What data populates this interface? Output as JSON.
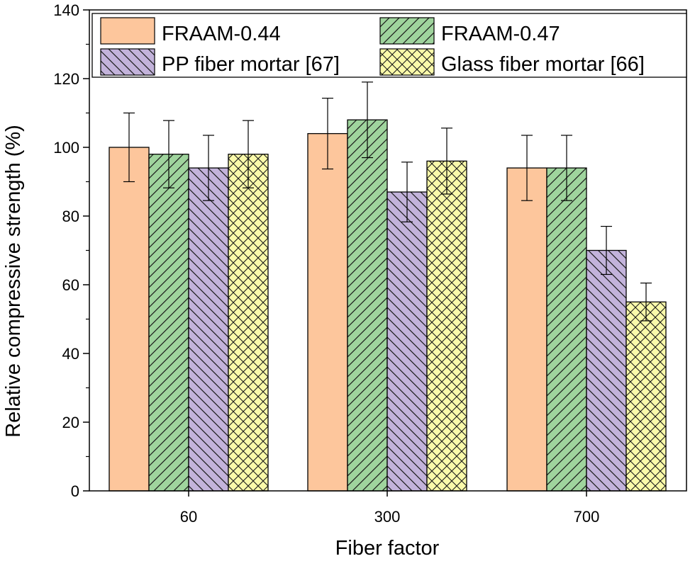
{
  "chart_data": {
    "type": "bar",
    "title": "",
    "xlabel": "Fiber factor",
    "ylabel": "Relative compressive strength (%)",
    "categories": [
      "60",
      "300",
      "700"
    ],
    "ylim": [
      0,
      140
    ],
    "yticks": [
      "0",
      "20",
      "40",
      "60",
      "80",
      "100",
      "120",
      "140"
    ],
    "legend_position": "top",
    "series": [
      {
        "name": "FRAAM-0.44",
        "values": [
          100,
          104,
          94
        ],
        "errors": [
          10,
          10.3,
          9.5
        ],
        "color": "#fdc69c",
        "pattern": "solid"
      },
      {
        "name": "FRAAM-0.47",
        "values": [
          98,
          108,
          94
        ],
        "errors": [
          9.8,
          11,
          9.5
        ],
        "color": "#9fd49d",
        "pattern": "forward-hatch"
      },
      {
        "name": "PP fiber mortar [67]",
        "values": [
          94,
          87,
          70
        ],
        "errors": [
          9.5,
          8.7,
          7
        ],
        "color": "#c3b3db",
        "pattern": "back-hatch"
      },
      {
        "name": "Glass fiber mortar [66]",
        "values": [
          98,
          96,
          55
        ],
        "errors": [
          9.8,
          9.6,
          5.5
        ],
        "color": "#fafaaa",
        "pattern": "cross-hatch"
      }
    ]
  }
}
